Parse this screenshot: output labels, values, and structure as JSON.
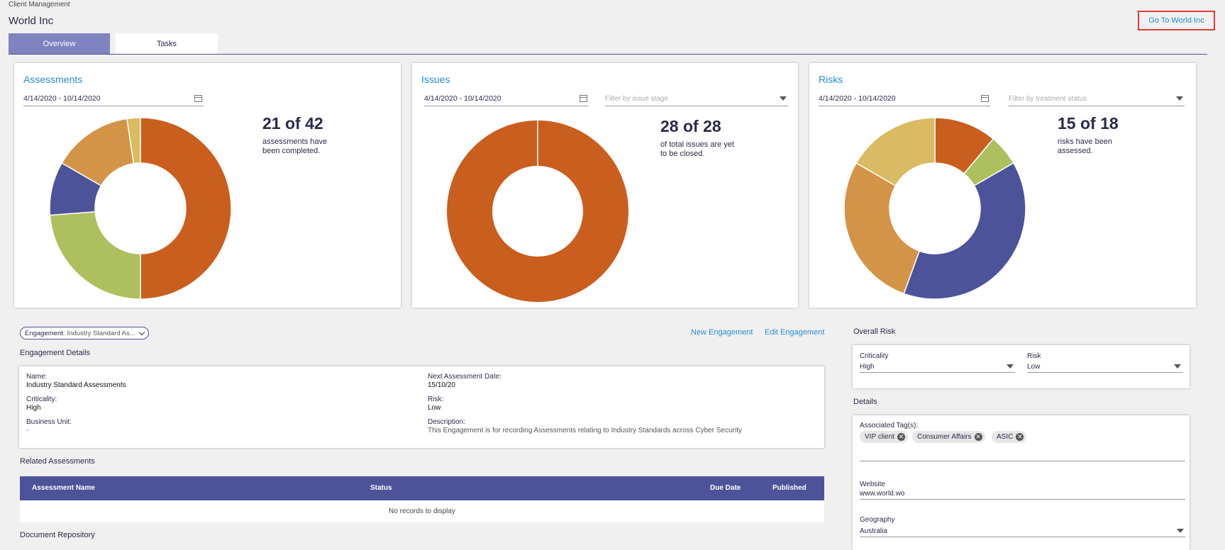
{
  "header": {
    "breadcrumb": "Client Management",
    "title": "World Inc",
    "goto_label": "Go To World Inc"
  },
  "tabs": [
    {
      "label": "Overview",
      "active": true
    },
    {
      "label": "Tasks",
      "active": false
    }
  ],
  "cards": {
    "assessments": {
      "title": "Assessments",
      "date_range": "4/14/2020 - 10/14/2020",
      "stat": "21 of 42",
      "stat_line1": "assessments have",
      "stat_line2": "been completed."
    },
    "issues": {
      "title": "Issues",
      "date_range": "4/14/2020 - 10/14/2020",
      "filter_placeholder": "Filter by issue stage",
      "stat": "28 of 28",
      "stat_line1": "of total issues are yet",
      "stat_line2": "to be closed."
    },
    "risks": {
      "title": "Risks",
      "date_range": "4/14/2020 - 10/14/2020",
      "filter_placeholder": "Filter by treatment status",
      "stat": "15 of 18",
      "stat_line1": "risks have been",
      "stat_line2": "assessed."
    }
  },
  "chart_data": [
    {
      "type": "pie",
      "title": "Assessments",
      "donut": true,
      "values": [
        21,
        10,
        4,
        6,
        1
      ],
      "colors": [
        "#c95e1f",
        "#adbf5e",
        "#4d5399",
        "#d39447",
        "#d8bb62"
      ]
    },
    {
      "type": "pie",
      "title": "Issues",
      "donut": true,
      "values": [
        28
      ],
      "colors": [
        "#c95e1f"
      ]
    },
    {
      "type": "pie",
      "title": "Risks",
      "donut": true,
      "values": [
        2,
        1,
        7,
        5,
        3
      ],
      "colors": [
        "#c95e1f",
        "#adbf5e",
        "#4d5399",
        "#d39447",
        "#d8bb62"
      ]
    }
  ],
  "engagement": {
    "pill_label": "Engagement:",
    "pill_value": "Industry Standard As...",
    "new_label": "New Engagement",
    "edit_label": "Edit Engagement",
    "details_heading": "Engagement Details",
    "fields": {
      "name_label": "Name:",
      "name_value": "Industry Standard Assessments",
      "criticality_label": "Criticality:",
      "criticality_value": "High",
      "bu_label": "Business Unit:",
      "bu_value": "-",
      "next_label": "Next Assessment Date:",
      "next_value": "15/10/20",
      "risk_label": "Risk:",
      "risk_value": "Low",
      "desc_label": "Description:",
      "desc_value": "This Engagement is for recording Assessments relating to Industry Standards across Cyber Security"
    }
  },
  "related": {
    "heading": "Related Assessments",
    "columns": [
      "Assessment Name",
      "Status",
      "Due Date",
      "Published"
    ],
    "empty_text": "No records to display"
  },
  "doc_repo_heading": "Document Repository",
  "overall_risk": {
    "heading": "Overall Risk",
    "criticality_label": "Criticality",
    "criticality_value": "High",
    "risk_label": "Risk",
    "risk_value": "Low"
  },
  "details": {
    "heading": "Details",
    "tags_label": "Associated Tag(s):",
    "tags": [
      "VIP client",
      "Consumer Affairs",
      "ASIC"
    ],
    "website_label": "Website",
    "website_value": "www.world.wo",
    "geo_label": "Geography",
    "geo_value": "Australia"
  }
}
